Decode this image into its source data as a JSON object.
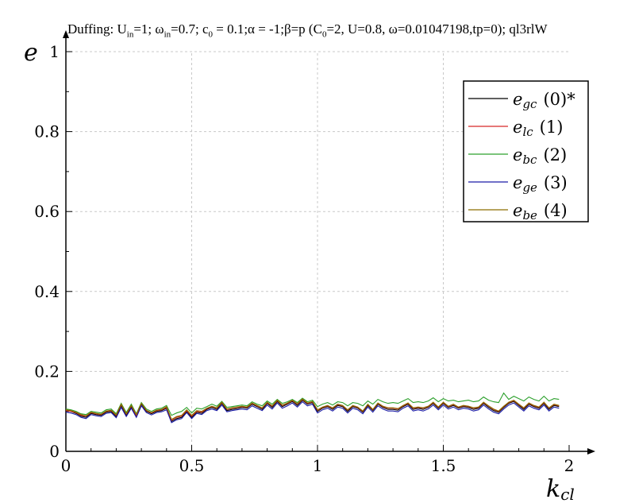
{
  "title": "Duffing: U_in=1; ω_in=0.7; c_0 = 0.1;α = -1;β=p (C_0=2, U=0.8, ω=0.01047198,tp=0); ql3rlW",
  "chart_data": {
    "type": "line",
    "xlabel_main": "k",
    "xlabel_sub": "cl",
    "ylabel": "e",
    "xlim": [
      0,
      2
    ],
    "ylim": [
      0,
      1
    ],
    "x_ticks": [
      "0",
      "0.5",
      "1",
      "1.5",
      "2"
    ],
    "y_ticks": [
      "0",
      "0.2",
      "0.4",
      "0.6",
      "0.8",
      "1"
    ],
    "grid": true,
    "legend_position": "top-right",
    "x": [
      0.0,
      0.02,
      0.04,
      0.06,
      0.08,
      0.1,
      0.12,
      0.14,
      0.16,
      0.18,
      0.2,
      0.22,
      0.24,
      0.26,
      0.28,
      0.3,
      0.32,
      0.34,
      0.36,
      0.38,
      0.4,
      0.42,
      0.44,
      0.46,
      0.48,
      0.5,
      0.52,
      0.54,
      0.56,
      0.58,
      0.6,
      0.62,
      0.64,
      0.66,
      0.68,
      0.7,
      0.72,
      0.74,
      0.76,
      0.78,
      0.8,
      0.82,
      0.84,
      0.86,
      0.88,
      0.9,
      0.92,
      0.94,
      0.96,
      0.98,
      1.0,
      1.02,
      1.04,
      1.06,
      1.08,
      1.1,
      1.12,
      1.14,
      1.16,
      1.18,
      1.2,
      1.22,
      1.24,
      1.26,
      1.28,
      1.3,
      1.32,
      1.34,
      1.36,
      1.38,
      1.4,
      1.42,
      1.44,
      1.46,
      1.48,
      1.5,
      1.52,
      1.54,
      1.56,
      1.58,
      1.6,
      1.62,
      1.64,
      1.66,
      1.68,
      1.7,
      1.72,
      1.74,
      1.76,
      1.78,
      1.8,
      1.82,
      1.84,
      1.86,
      1.88,
      1.9,
      1.92,
      1.94,
      1.96
    ],
    "series": [
      {
        "label_main": "e",
        "label_sub": "gc",
        "label_tail": "(0)*",
        "color": "#000000",
        "values": [
          0.103,
          0.1,
          0.095,
          0.088,
          0.085,
          0.095,
          0.092,
          0.09,
          0.098,
          0.1,
          0.087,
          0.115,
          0.09,
          0.112,
          0.088,
          0.118,
          0.1,
          0.094,
          0.1,
          0.102,
          0.108,
          0.075,
          0.082,
          0.085,
          0.1,
          0.085,
          0.098,
          0.095,
          0.105,
          0.11,
          0.105,
          0.12,
          0.102,
          0.105,
          0.107,
          0.11,
          0.108,
          0.118,
          0.112,
          0.105,
          0.12,
          0.11,
          0.125,
          0.112,
          0.118,
          0.125,
          0.115,
          0.128,
          0.118,
          0.122,
          0.1,
          0.108,
          0.112,
          0.105,
          0.115,
          0.112,
          0.1,
          0.112,
          0.108,
          0.098,
          0.115,
          0.102,
          0.118,
          0.11,
          0.105,
          0.105,
          0.103,
          0.112,
          0.118,
          0.105,
          0.108,
          0.105,
          0.11,
          0.12,
          0.108,
          0.12,
          0.11,
          0.115,
          0.108,
          0.112,
          0.11,
          0.105,
          0.108,
          0.12,
          0.11,
          0.102,
          0.098,
          0.11,
          0.12,
          0.125,
          0.115,
          0.105,
          0.118,
          0.112,
          0.108,
          0.12,
          0.105,
          0.115,
          0.112
        ]
      },
      {
        "label_main": "e",
        "label_sub": "lc",
        "label_tail": "(1)",
        "color": "#d62728",
        "values": [
          0.102,
          0.1,
          0.097,
          0.09,
          0.088,
          0.097,
          0.094,
          0.092,
          0.1,
          0.102,
          0.09,
          0.117,
          0.093,
          0.114,
          0.09,
          0.12,
          0.102,
          0.096,
          0.102,
          0.104,
          0.11,
          0.078,
          0.085,
          0.088,
          0.102,
          0.088,
          0.1,
          0.098,
          0.107,
          0.112,
          0.108,
          0.122,
          0.105,
          0.108,
          0.11,
          0.112,
          0.11,
          0.12,
          0.114,
          0.108,
          0.122,
          0.113,
          0.127,
          0.115,
          0.12,
          0.127,
          0.118,
          0.13,
          0.12,
          0.124,
          0.103,
          0.11,
          0.114,
          0.108,
          0.117,
          0.114,
          0.103,
          0.114,
          0.11,
          0.1,
          0.117,
          0.104,
          0.12,
          0.112,
          0.108,
          0.108,
          0.106,
          0.114,
          0.12,
          0.108,
          0.11,
          0.108,
          0.112,
          0.122,
          0.11,
          0.122,
          0.112,
          0.117,
          0.11,
          0.114,
          0.112,
          0.108,
          0.11,
          0.122,
          0.113,
          0.105,
          0.1,
          0.112,
          0.122,
          0.127,
          0.117,
          0.108,
          0.12,
          0.114,
          0.11,
          0.122,
          0.108,
          0.117,
          0.114
        ]
      },
      {
        "label_main": "e",
        "label_sub": "bc",
        "label_tail": "(2)",
        "color": "#2ca02c",
        "values": [
          0.106,
          0.104,
          0.1,
          0.094,
          0.092,
          0.1,
          0.098,
          0.096,
          0.104,
          0.106,
          0.094,
          0.12,
          0.097,
          0.118,
          0.094,
          0.122,
          0.106,
          0.1,
          0.106,
          0.108,
          0.115,
          0.09,
          0.096,
          0.1,
          0.11,
          0.096,
          0.108,
          0.106,
          0.112,
          0.118,
          0.113,
          0.125,
          0.11,
          0.112,
          0.114,
          0.116,
          0.114,
          0.124,
          0.118,
          0.114,
          0.126,
          0.118,
          0.13,
          0.12,
          0.124,
          0.13,
          0.122,
          0.133,
          0.124,
          0.128,
          0.112,
          0.118,
          0.122,
          0.116,
          0.124,
          0.122,
          0.114,
          0.122,
          0.12,
          0.114,
          0.126,
          0.118,
          0.13,
          0.124,
          0.12,
          0.122,
          0.12,
          0.126,
          0.132,
          0.122,
          0.124,
          0.122,
          0.126,
          0.134,
          0.124,
          0.132,
          0.126,
          0.128,
          0.124,
          0.126,
          0.128,
          0.124,
          0.126,
          0.136,
          0.128,
          0.124,
          0.122,
          0.146,
          0.13,
          0.138,
          0.132,
          0.126,
          0.136,
          0.13,
          0.126,
          0.138,
          0.126,
          0.132,
          0.13
        ]
      },
      {
        "label_main": "e",
        "label_sub": "ge",
        "label_tail": "(3)",
        "color": "#1a1aa6",
        "values": [
          0.098,
          0.096,
          0.092,
          0.085,
          0.082,
          0.092,
          0.089,
          0.087,
          0.095,
          0.097,
          0.084,
          0.11,
          0.087,
          0.108,
          0.085,
          0.114,
          0.097,
          0.091,
          0.097,
          0.099,
          0.104,
          0.072,
          0.079,
          0.082,
          0.097,
          0.082,
          0.095,
          0.092,
          0.102,
          0.106,
          0.102,
          0.116,
          0.099,
          0.102,
          0.104,
          0.106,
          0.104,
          0.114,
          0.108,
          0.102,
          0.116,
          0.106,
          0.121,
          0.108,
          0.114,
          0.121,
          0.111,
          0.124,
          0.114,
          0.118,
          0.096,
          0.104,
          0.108,
          0.101,
          0.111,
          0.108,
          0.096,
          0.108,
          0.104,
          0.094,
          0.111,
          0.098,
          0.114,
          0.106,
          0.101,
          0.101,
          0.099,
          0.108,
          0.114,
          0.101,
          0.104,
          0.101,
          0.106,
          0.116,
          0.104,
          0.116,
          0.106,
          0.111,
          0.104,
          0.108,
          0.106,
          0.101,
          0.104,
          0.116,
          0.106,
          0.098,
          0.094,
          0.106,
          0.116,
          0.121,
          0.111,
          0.101,
          0.114,
          0.108,
          0.104,
          0.116,
          0.101,
          0.111,
          0.108
        ]
      },
      {
        "label_main": "e",
        "label_sub": "be",
        "label_tail": "(4)",
        "color": "#8c6d00",
        "values": [
          0.104,
          0.102,
          0.098,
          0.092,
          0.089,
          0.098,
          0.095,
          0.093,
          0.101,
          0.103,
          0.091,
          0.118,
          0.094,
          0.115,
          0.092,
          0.12,
          0.103,
          0.097,
          0.103,
          0.105,
          0.112,
          0.08,
          0.087,
          0.09,
          0.104,
          0.09,
          0.102,
          0.1,
          0.108,
          0.113,
          0.109,
          0.123,
          0.106,
          0.109,
          0.111,
          0.113,
          0.111,
          0.121,
          0.115,
          0.109,
          0.123,
          0.114,
          0.128,
          0.116,
          0.121,
          0.128,
          0.119,
          0.131,
          0.121,
          0.125,
          0.104,
          0.111,
          0.115,
          0.109,
          0.118,
          0.115,
          0.104,
          0.115,
          0.111,
          0.101,
          0.118,
          0.105,
          0.121,
          0.113,
          0.109,
          0.109,
          0.107,
          0.115,
          0.121,
          0.109,
          0.111,
          0.109,
          0.113,
          0.123,
          0.111,
          0.123,
          0.113,
          0.118,
          0.111,
          0.115,
          0.113,
          0.109,
          0.111,
          0.123,
          0.114,
          0.106,
          0.101,
          0.113,
          0.123,
          0.128,
          0.118,
          0.109,
          0.121,
          0.115,
          0.111,
          0.123,
          0.109,
          0.118,
          0.115
        ]
      }
    ]
  }
}
